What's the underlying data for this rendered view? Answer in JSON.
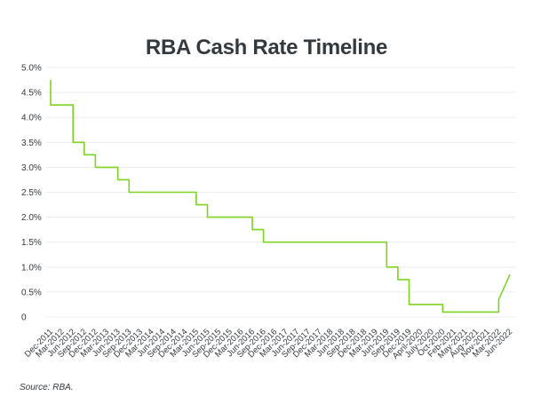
{
  "chart_data": {
    "type": "line",
    "title": "RBA Cash Rate Timeline",
    "source": "Source: RBA.",
    "color": "#7ed321",
    "grid": true,
    "ylim": [
      0,
      5.0
    ],
    "yticks": [
      {
        "value": 5.0,
        "label": "5.0%"
      },
      {
        "value": 4.5,
        "label": "4.5%"
      },
      {
        "value": 4.0,
        "label": "4.0%"
      },
      {
        "value": 3.5,
        "label": "3.5%"
      },
      {
        "value": 3.0,
        "label": "3.0%"
      },
      {
        "value": 2.5,
        "label": "2.5%"
      },
      {
        "value": 2.0,
        "label": "2.0%"
      },
      {
        "value": 1.5,
        "label": "1.5%"
      },
      {
        "value": 1.0,
        "label": "1.0%"
      },
      {
        "value": 0.5,
        "label": "0.5%"
      },
      {
        "value": 0,
        "label": "0"
      }
    ],
    "xticks": [
      "Dec-2011",
      "Mar-2012",
      "Jun-2012",
      "Sep-2012",
      "Dec-2012",
      "Mar-2013",
      "Jun-2013",
      "Sep-2013",
      "Dec-2013",
      "Mar-2014",
      "Jun-2014",
      "Sep-2014",
      "Dec-2014",
      "Mar-2015",
      "Jun-2015",
      "Sep-2015",
      "Dec-2015",
      "Mar-2016",
      "Jun-2016",
      "Sep-2016",
      "Dec-2016",
      "Mar-2017",
      "Jun-2017",
      "Sep-2017",
      "Dec-2017",
      "Mar-2018",
      "Jun-2018",
      "Sep-2018",
      "Dec-2018",
      "Mar-2019",
      "Jun-2019",
      "Sep-2019",
      "Dec-2019",
      "April-2020",
      "July-2020",
      "Oct-2020",
      "Feb-2021",
      "May-2021",
      "Aug-2021",
      "Nov-2021",
      "Mar-2022",
      "Jun-2022"
    ],
    "series": [
      {
        "steps": [
          {
            "x": "Dec-2011",
            "y": 4.75
          },
          {
            "x": "Dec-2011",
            "y": 4.25
          },
          {
            "x": "Jun-2012",
            "y": 4.25
          },
          {
            "x": "Jun-2012",
            "y": 3.75
          },
          {
            "x": "Jun-2012",
            "y": 3.5
          },
          {
            "x": "Sep-2012",
            "y": 3.5
          },
          {
            "x": "Sep-2012",
            "y": 3.25
          },
          {
            "x": "Dec-2012",
            "y": 3.25
          },
          {
            "x": "Dec-2012",
            "y": 3.0
          },
          {
            "x": "Jun-2013",
            "y": 3.0
          },
          {
            "x": "Jun-2013",
            "y": 2.75
          },
          {
            "x": "Sep-2013",
            "y": 2.75
          },
          {
            "x": "Sep-2013",
            "y": 2.5
          },
          {
            "x": "Mar-2015",
            "y": 2.5
          },
          {
            "x": "Mar-2015",
            "y": 2.25
          },
          {
            "x": "Jun-2015",
            "y": 2.25
          },
          {
            "x": "Jun-2015",
            "y": 2.0
          },
          {
            "x": "Jun-2016",
            "y": 2.0
          },
          {
            "x": "Jun-2016",
            "y": 1.75
          },
          {
            "x": "Sep-2016",
            "y": 1.75
          },
          {
            "x": "Sep-2016",
            "y": 1.5
          },
          {
            "x": "Jun-2019",
            "y": 1.5
          },
          {
            "x": "Jun-2019",
            "y": 1.25
          },
          {
            "x": "Jun-2019",
            "y": 1.0
          },
          {
            "x": "Sep-2019",
            "y": 1.0
          },
          {
            "x": "Sep-2019",
            "y": 0.75
          },
          {
            "x": "Dec-2019",
            "y": 0.75
          },
          {
            "x": "Dec-2019",
            "y": 0.5
          },
          {
            "x": "Dec-2019",
            "y": 0.25
          },
          {
            "x": "Oct-2020",
            "y": 0.25
          },
          {
            "x": "Oct-2020",
            "y": 0.1
          },
          {
            "x": "Mar-2022",
            "y": 0.1
          },
          {
            "x": "Mar-2022",
            "y": 0.35
          },
          {
            "x": "Jun-2022",
            "y": 0.85
          }
        ]
      }
    ]
  }
}
